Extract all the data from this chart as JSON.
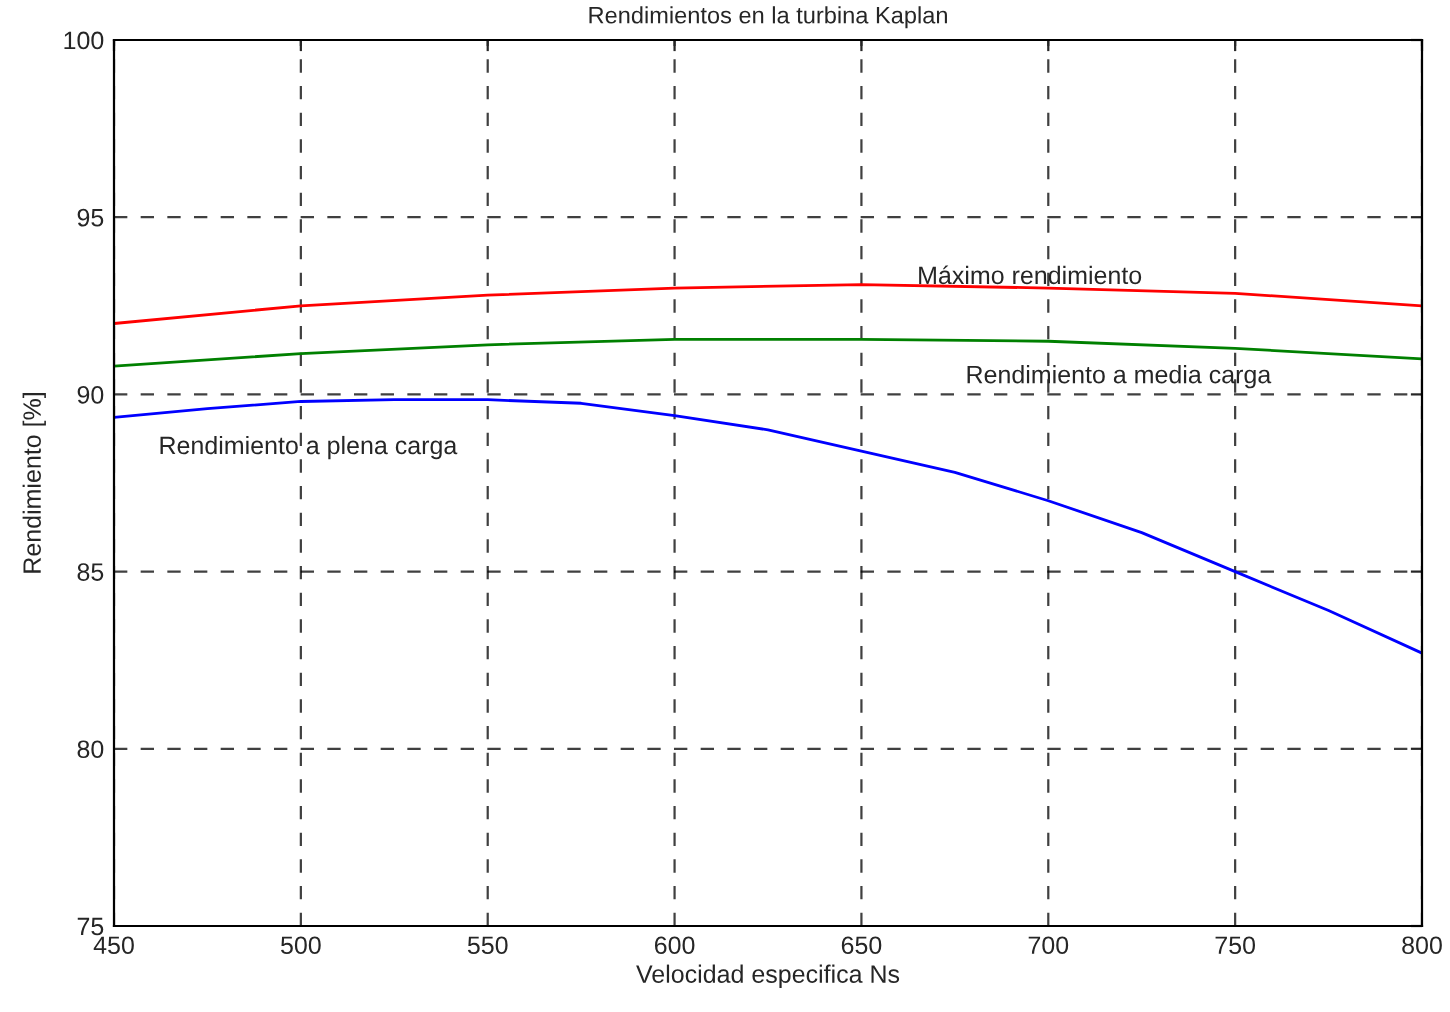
{
  "chart_data": {
    "type": "line",
    "title": "Rendimientos en la turbina Kaplan",
    "xlabel": "Velocidad especifica Ns",
    "ylabel": "Rendimiento [%]",
    "series": [
      {
        "name": "Máximo rendimiento",
        "color": "#ff0000",
        "x": [
          450,
          500,
          550,
          600,
          650,
          700,
          750,
          800
        ],
        "values": [
          92.0,
          92.5,
          92.8,
          93.0,
          93.1,
          93.0,
          92.85,
          92.5
        ]
      },
      {
        "name": "Rendimiento a media carga",
        "color": "#008000",
        "x": [
          450,
          500,
          550,
          600,
          650,
          700,
          750,
          800
        ],
        "values": [
          90.8,
          91.15,
          91.4,
          91.55,
          91.55,
          91.5,
          91.3,
          91.0
        ]
      },
      {
        "name": "Rendimiento a plena carga",
        "color": "#0000ff",
        "x": [
          450,
          475,
          500,
          525,
          550,
          575,
          600,
          625,
          650,
          675,
          700,
          725,
          750,
          775,
          800
        ],
        "values": [
          89.35,
          89.6,
          89.8,
          89.85,
          89.85,
          89.75,
          89.4,
          89.0,
          88.4,
          87.8,
          87.0,
          86.1,
          85.0,
          83.9,
          82.7
        ]
      }
    ],
    "xlim": [
      450,
      800
    ],
    "ylim": [
      75,
      100
    ],
    "xticks": [
      450,
      500,
      550,
      600,
      650,
      700,
      750,
      800
    ],
    "yticks": [
      75,
      80,
      85,
      90,
      95,
      100
    ],
    "grid": true
  }
}
